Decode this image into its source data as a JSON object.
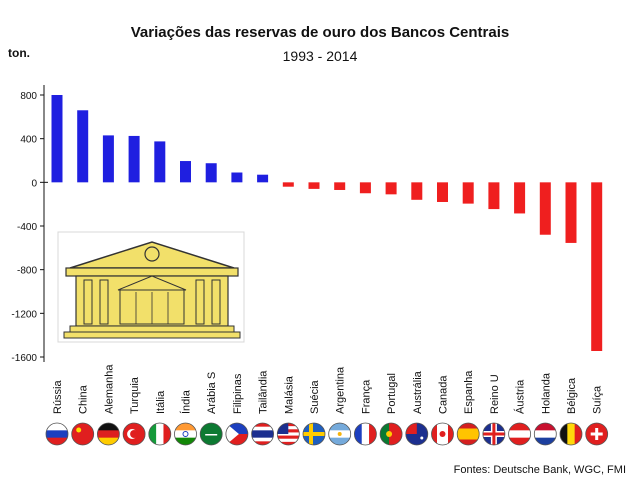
{
  "chart_data": {
    "type": "bar",
    "title": "Variações das reservas de ouro dos Bancos Centrais",
    "subtitle": "1993 - 2014",
    "ylabel": "ton.",
    "xlabel": "",
    "ylim": [
      -1600,
      900
    ],
    "yticks": [
      800,
      400,
      0,
      -400,
      -800,
      -1200,
      -1600
    ],
    "categories": [
      "Rússia",
      "China",
      "Alemanha",
      "Turquia",
      "Itália",
      "Índia",
      "Arábia S",
      "Filipinas",
      "Tailândia",
      "Malásia",
      "Suécia",
      "Argentina",
      "França",
      "Portugal",
      "Austrália",
      "Canada",
      "Espanha",
      "Reino U",
      "Áustria",
      "Holanda",
      "Bélgica",
      "Suíça"
    ],
    "values": [
      800,
      660,
      430,
      425,
      375,
      195,
      175,
      90,
      70,
      -40,
      -60,
      -70,
      -100,
      -110,
      -160,
      -180,
      -195,
      -245,
      -285,
      -480,
      -555,
      -1545
    ],
    "colors": {
      "positive": "#1f1fe0",
      "negative": "#ef1f1f"
    },
    "grid": false,
    "legend": "none",
    "source": "Fontes: Deutsche Bank, WGC, FMI"
  },
  "icons": {
    "illustration": "central-bank-building-icon",
    "flags": [
      "russia-flag-icon",
      "china-flag-icon",
      "germany-flag-icon",
      "turkey-flag-icon",
      "italy-flag-icon",
      "india-flag-icon",
      "saudi-arabia-flag-icon",
      "philippines-flag-icon",
      "thailand-flag-icon",
      "malaysia-flag-icon",
      "sweden-flag-icon",
      "argentina-flag-icon",
      "france-flag-icon",
      "portugal-flag-icon",
      "australia-flag-icon",
      "canada-flag-icon",
      "spain-flag-icon",
      "uk-flag-icon",
      "austria-flag-icon",
      "netherlands-flag-icon",
      "belgium-flag-icon",
      "switzerland-flag-icon"
    ]
  }
}
